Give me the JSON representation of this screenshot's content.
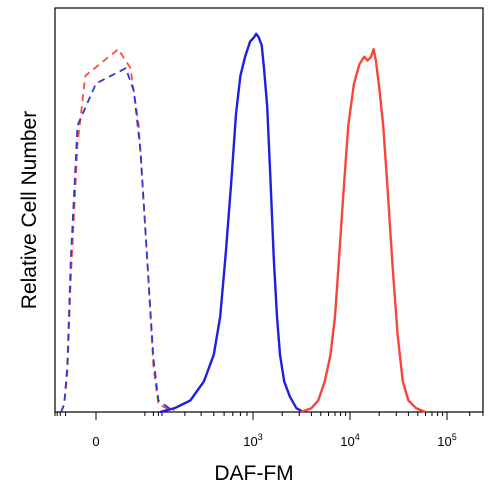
{
  "chart_data": {
    "type": "line",
    "title": "",
    "xlabel": "DAF-FM",
    "ylabel": "Relative Cell Number",
    "x_scale": "biexponential",
    "x_ticks": [
      {
        "value": 0,
        "label": "0"
      },
      {
        "value": 1000,
        "base": "10",
        "exp": "3"
      },
      {
        "value": 10000,
        "base": "10",
        "exp": "4"
      },
      {
        "value": 100000,
        "base": "10",
        "exp": "5"
      }
    ],
    "ylim": [
      0,
      100
    ],
    "grid": false,
    "legend": "none",
    "series": [
      {
        "color": "#ff4a3d",
        "style": "dashed",
        "points": [
          [
            -90,
            0
          ],
          [
            -60,
            2
          ],
          [
            -40,
            10
          ],
          [
            -25,
            35
          ],
          [
            -10,
            70
          ],
          [
            -3,
            88
          ],
          [
            5,
            95
          ],
          [
            15,
            90
          ],
          [
            30,
            75
          ],
          [
            60,
            40
          ],
          [
            100,
            12
          ],
          [
            150,
            2
          ],
          [
            250,
            0
          ]
        ]
      },
      {
        "color": "#2b3bd6",
        "style": "dashed",
        "points": [
          [
            -90,
            0
          ],
          [
            -60,
            2
          ],
          [
            -40,
            12
          ],
          [
            -25,
            40
          ],
          [
            -10,
            75
          ],
          [
            0,
            86
          ],
          [
            10,
            90
          ],
          [
            20,
            84
          ],
          [
            35,
            68
          ],
          [
            60,
            40
          ],
          [
            100,
            14
          ],
          [
            150,
            3
          ],
          [
            250,
            0
          ]
        ]
      },
      {
        "color": "#1f1fe0",
        "style": "solid",
        "points": [
          [
            170,
            0
          ],
          [
            250,
            1
          ],
          [
            330,
            3
          ],
          [
            420,
            8
          ],
          [
            500,
            15
          ],
          [
            560,
            25
          ],
          [
            620,
            42
          ],
          [
            680,
            60
          ],
          [
            740,
            78
          ],
          [
            800,
            88
          ],
          [
            870,
            93
          ],
          [
            950,
            97
          ],
          [
            1020,
            98
          ],
          [
            1080,
            99
          ],
          [
            1150,
            98
          ],
          [
            1230,
            96
          ],
          [
            1300,
            90
          ],
          [
            1400,
            80
          ],
          [
            1520,
            60
          ],
          [
            1640,
            40
          ],
          [
            1770,
            25
          ],
          [
            1900,
            15
          ],
          [
            2100,
            8
          ],
          [
            2400,
            4
          ],
          [
            2800,
            1
          ],
          [
            3300,
            0
          ]
        ]
      },
      {
        "color": "#f4473a",
        "style": "solid",
        "points": [
          [
            3100,
            0
          ],
          [
            4000,
            1
          ],
          [
            4700,
            3
          ],
          [
            5500,
            8
          ],
          [
            6300,
            15
          ],
          [
            7000,
            25
          ],
          [
            7700,
            40
          ],
          [
            8600,
            58
          ],
          [
            9600,
            75
          ],
          [
            11000,
            86
          ],
          [
            12500,
            91
          ],
          [
            14000,
            93
          ],
          [
            15200,
            92
          ],
          [
            16500,
            93
          ],
          [
            17500,
            95
          ],
          [
            18500,
            92
          ],
          [
            20000,
            85
          ],
          [
            22000,
            75
          ],
          [
            24500,
            58
          ],
          [
            27500,
            38
          ],
          [
            31000,
            20
          ],
          [
            35000,
            8
          ],
          [
            40000,
            3
          ],
          [
            48000,
            1
          ],
          [
            60000,
            0
          ]
        ]
      }
    ]
  }
}
